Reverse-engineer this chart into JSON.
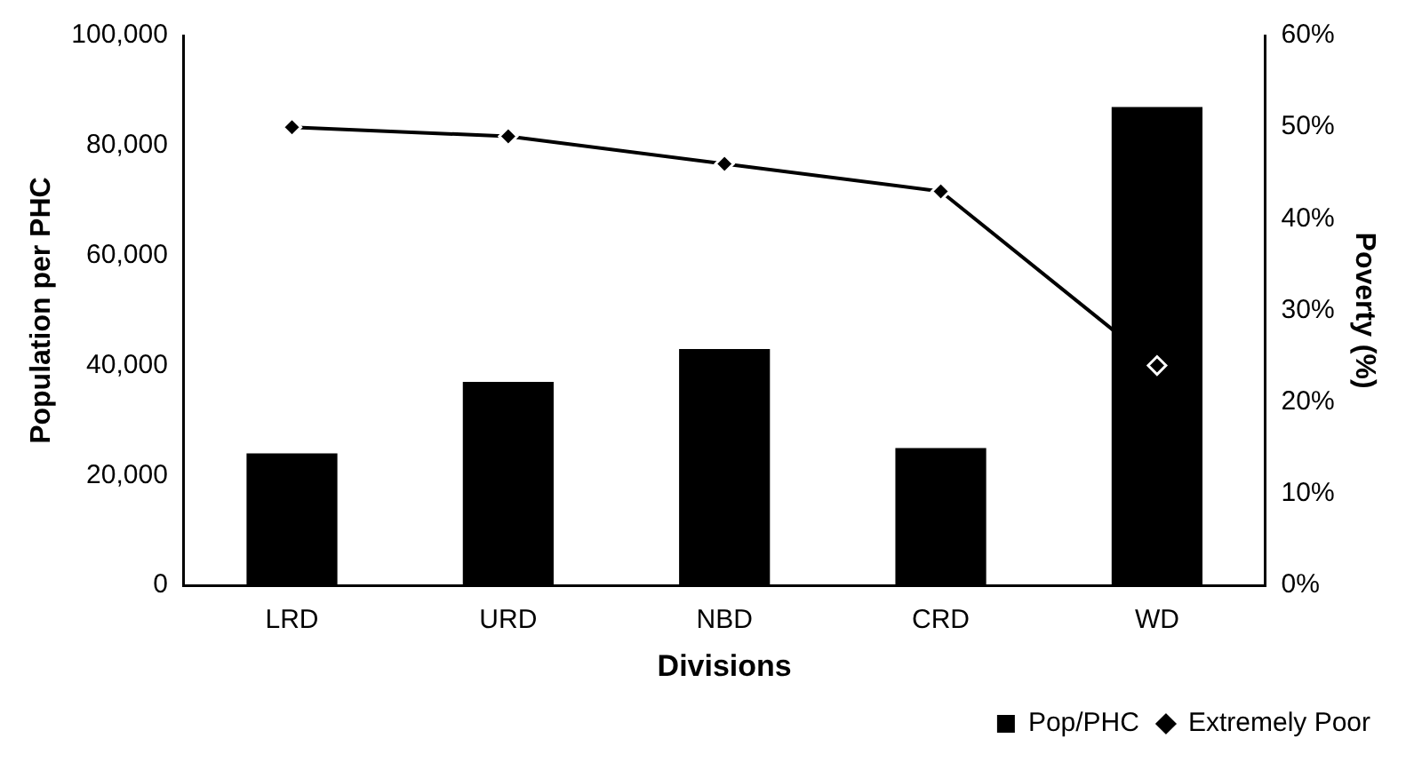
{
  "chart_data": {
    "type": "bar",
    "xlabel": "Divisions",
    "ylabel": "Population per PHC",
    "y2label": "Poverty (%)",
    "categories": [
      "LRD",
      "URD",
      "NBD",
      "CRD",
      "WD"
    ],
    "series": [
      {
        "name": "Pop/PHC",
        "color": "#000000",
        "values": [
          24000,
          37000,
          43000,
          25000,
          87000
        ]
      },
      {
        "name": "Extremely Poor",
        "type": "line",
        "axis": "y2",
        "color": "#000000",
        "marker": "diamond",
        "values": [
          50,
          49,
          46,
          43,
          24
        ]
      }
    ],
    "ylim": [
      0,
      100000
    ],
    "yticks": [
      {
        "value": 0,
        "label": "0"
      },
      {
        "value": 20000,
        "label": "20,000"
      },
      {
        "value": 40000,
        "label": "40,000"
      },
      {
        "value": 60000,
        "label": "60,000"
      },
      {
        "value": 80000,
        "label": "80,000"
      },
      {
        "value": 100000,
        "label": "100,000"
      }
    ],
    "y2lim": [
      0,
      60
    ],
    "y2ticks": [
      {
        "value": 0,
        "label": "0%"
      },
      {
        "value": 10,
        "label": "10%"
      },
      {
        "value": 20,
        "label": "20%"
      },
      {
        "value": 30,
        "label": "30%"
      },
      {
        "value": 40,
        "label": "40%"
      },
      {
        "value": 50,
        "label": "50%"
      },
      {
        "value": 60,
        "label": "60%"
      }
    ],
    "grid": false,
    "legend": "bottom right"
  }
}
